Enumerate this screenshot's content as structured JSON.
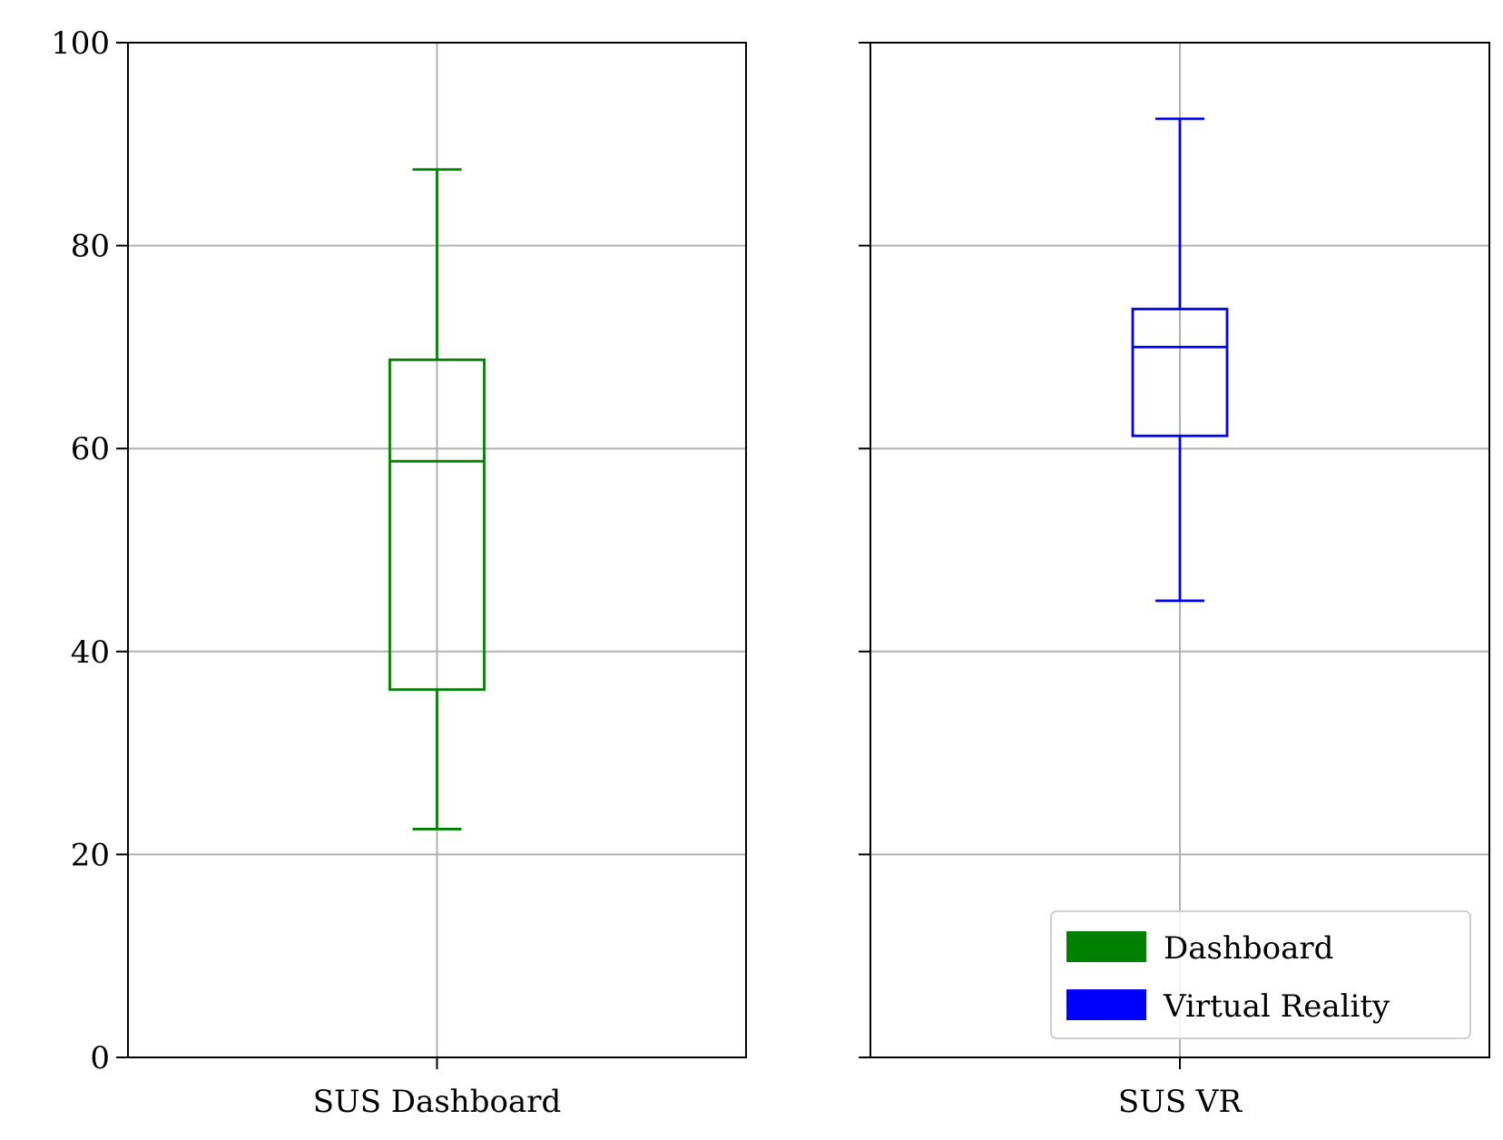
{
  "chart_data": {
    "type": "box",
    "ylim": [
      0,
      100
    ],
    "yticks": [
      0,
      20,
      40,
      60,
      80,
      100
    ],
    "grid": true,
    "sharey": true,
    "legend": {
      "placement": "lower-right",
      "entries": [
        {
          "label": "Dashboard",
          "color": "#008000"
        },
        {
          "label": "Virtual Reality",
          "color": "#0000ff"
        }
      ]
    },
    "panels": [
      {
        "category": "SUS Dashboard",
        "color": "#008000",
        "whisker_low": 22.5,
        "q1": 36.25,
        "median": 58.75,
        "q3": 68.75,
        "whisker_high": 87.5
      },
      {
        "category": "SUS VR",
        "color": "#0000ff",
        "whisker_low": 45,
        "q1": 61.25,
        "median": 70,
        "q3": 73.75,
        "whisker_high": 92.5
      }
    ]
  }
}
